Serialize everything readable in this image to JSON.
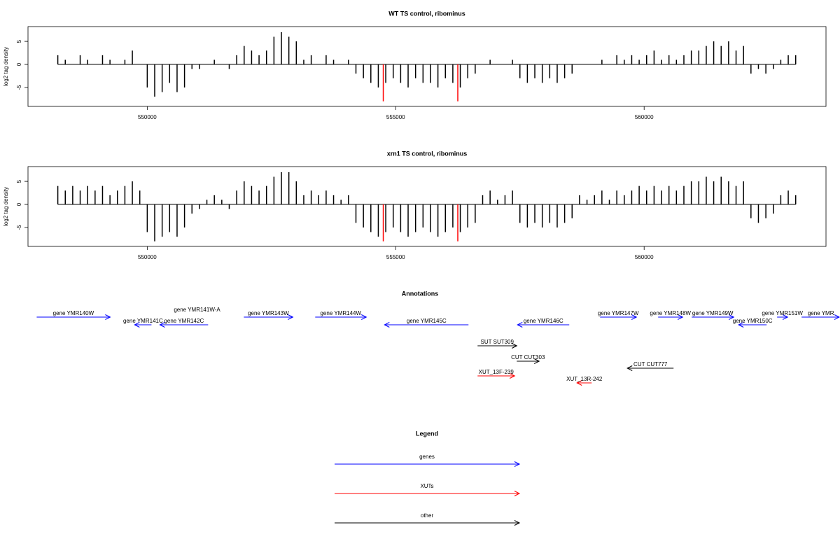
{
  "chart_data": [
    {
      "type": "bar",
      "title": "WT TS control, ribominus",
      "ylabel": "log2 tag density",
      "xlim": [
        547600,
        563660
      ],
      "ylim": [
        -9.1,
        8.2
      ],
      "xticks": [
        550000,
        555000,
        560000
      ],
      "yticks": [
        -5,
        0,
        5
      ],
      "series": [
        {
          "color": "#000000",
          "x": [
            548200,
            548350,
            548500,
            548650,
            548800,
            548950,
            549100,
            549250,
            549400,
            549550,
            549700,
            549850,
            550000,
            550150,
            550300,
            550450,
            550600,
            550750,
            550900,
            551050,
            551200,
            551350,
            551500,
            551650,
            551800,
            551950,
            552100,
            552250,
            552400,
            552550,
            552700,
            552850,
            553000,
            553150,
            553300,
            553450,
            553600,
            553750,
            553900,
            554050,
            554200,
            554350,
            554500,
            554650,
            554800,
            554950,
            555100,
            555250,
            555400,
            555550,
            555700,
            555850,
            556000,
            556150,
            556300,
            556450,
            556600,
            556750,
            556900,
            557050,
            557200,
            557350,
            557500,
            557650,
            557800,
            557950,
            558100,
            558250,
            558400,
            558550,
            558700,
            558850,
            559000,
            559150,
            559300,
            559450,
            559600,
            559750,
            559900,
            560050,
            560200,
            560350,
            560500,
            560650,
            560800,
            560950,
            561100,
            561250,
            561400,
            561550,
            561700,
            561850,
            562000,
            562150,
            562300,
            562450,
            562600,
            562750,
            562900,
            563050
          ],
          "values": [
            2,
            1,
            0,
            2,
            1,
            0,
            2,
            1,
            0,
            1,
            3,
            0,
            -5,
            -7,
            -6,
            -4,
            -6,
            -5,
            -1,
            -1,
            0,
            1,
            0,
            -1,
            2,
            4,
            3,
            2,
            3,
            6,
            7,
            6,
            5,
            1,
            2,
            0,
            2,
            1,
            0,
            1,
            -2,
            -3,
            -4,
            -5,
            -4,
            -3,
            -4,
            -5,
            -3,
            -4,
            -4,
            -5,
            -3,
            -4,
            -5,
            -3,
            -2,
            0,
            1,
            0,
            0,
            1,
            -3,
            -4,
            -3,
            -4,
            -3,
            -4,
            -3,
            -2,
            0,
            0,
            0,
            1,
            0,
            2,
            1,
            2,
            1,
            2,
            3,
            1,
            2,
            1,
            2,
            3,
            3,
            4,
            5,
            4,
            5,
            3,
            4,
            -2,
            -1,
            -2,
            -1,
            1,
            2,
            2
          ]
        },
        {
          "color": "#ff0000",
          "x": [
            554750,
            556250
          ],
          "values": [
            -8,
            -8
          ]
        }
      ]
    },
    {
      "type": "bar",
      "title": "xrn1 TS control, ribominus",
      "ylabel": "log2 tag density",
      "xlim": [
        547600,
        563660
      ],
      "ylim": [
        -9.1,
        8.2
      ],
      "xticks": [
        550000,
        555000,
        560000
      ],
      "yticks": [
        -5,
        0,
        5
      ],
      "series": [
        {
          "color": "#000000",
          "x": [
            548200,
            548350,
            548500,
            548650,
            548800,
            548950,
            549100,
            549250,
            549400,
            549550,
            549700,
            549850,
            550000,
            550150,
            550300,
            550450,
            550600,
            550750,
            550900,
            551050,
            551200,
            551350,
            551500,
            551650,
            551800,
            551950,
            552100,
            552250,
            552400,
            552550,
            552700,
            552850,
            553000,
            553150,
            553300,
            553450,
            553600,
            553750,
            553900,
            554050,
            554200,
            554350,
            554500,
            554650,
            554800,
            554950,
            555100,
            555250,
            555400,
            555550,
            555700,
            555850,
            556000,
            556150,
            556300,
            556450,
            556600,
            556750,
            556900,
            557050,
            557200,
            557350,
            557500,
            557650,
            557800,
            557950,
            558100,
            558250,
            558400,
            558550,
            558700,
            558850,
            559000,
            559150,
            559300,
            559450,
            559600,
            559750,
            559900,
            560050,
            560200,
            560350,
            560500,
            560650,
            560800,
            560950,
            561100,
            561250,
            561400,
            561550,
            561700,
            561850,
            562000,
            562150,
            562300,
            562450,
            562600,
            562750,
            562900,
            563050
          ],
          "values": [
            4,
            3,
            4,
            3,
            4,
            3,
            4,
            2,
            3,
            4,
            5,
            3,
            -6,
            -8,
            -7,
            -6,
            -7,
            -5,
            -2,
            -1,
            1,
            2,
            1,
            -1,
            3,
            5,
            4,
            3,
            4,
            6,
            7,
            7,
            5,
            2,
            3,
            2,
            3,
            2,
            1,
            2,
            -4,
            -5,
            -6,
            -7,
            -6,
            -5,
            -6,
            -7,
            -6,
            -5,
            -6,
            -7,
            -6,
            -5,
            -6,
            -5,
            -4,
            2,
            3,
            1,
            2,
            3,
            -4,
            -5,
            -4,
            -5,
            -4,
            -5,
            -4,
            -3,
            2,
            1,
            2,
            3,
            1,
            3,
            2,
            3,
            4,
            3,
            4,
            3,
            4,
            3,
            4,
            5,
            5,
            6,
            5,
            6,
            5,
            4,
            5,
            -3,
            -4,
            -3,
            -2,
            2,
            3,
            2
          ]
        },
        {
          "color": "#ff0000",
          "x": [
            554750,
            556250
          ],
          "values": [
            -8,
            -8
          ]
        }
      ]
    }
  ],
  "annotations": {
    "title": "Annotations",
    "features": [
      {
        "label": "gene YMR140W",
        "start": 547775,
        "end": 549254,
        "strand": "+",
        "color": "#0000ff"
      },
      {
        "label": "gene YMR141C",
        "start": 549746,
        "end": 550085,
        "strand": "-",
        "color": "#0000ff"
      },
      {
        "label": "gene YMR141W-A",
        "start": 550780,
        "end": 551225,
        "strand": "+",
        "color": "#0000ff"
      },
      {
        "label": "gene YMR142C",
        "start": 550254,
        "end": 551225,
        "strand": "-",
        "color": "#0000ff"
      },
      {
        "label": "gene YMR143W",
        "start": 551944,
        "end": 552930,
        "strand": "+",
        "color": "#0000ff"
      },
      {
        "label": "gene YMR144W",
        "start": 553380,
        "end": 554408,
        "strand": "+",
        "color": "#0000ff"
      },
      {
        "label": "gene YMR145C",
        "start": 554775,
        "end": 556465,
        "strand": "-",
        "color": "#0000ff"
      },
      {
        "label": "gene YMR146C",
        "start": 557451,
        "end": 558493,
        "strand": "-",
        "color": "#0000ff"
      },
      {
        "label": "gene YMR147W",
        "start": 559113,
        "end": 559845,
        "strand": "+",
        "color": "#0000ff"
      },
      {
        "label": "gene YMR148W",
        "start": 560282,
        "end": 560775,
        "strand": "+",
        "color": "#0000ff"
      },
      {
        "label": "gene YMR149W",
        "start": 560958,
        "end": 561803,
        "strand": "+",
        "color": "#0000ff"
      },
      {
        "label": "gene YMR150C",
        "start": 561901,
        "end": 562465,
        "strand": "-",
        "color": "#0000ff"
      },
      {
        "label": "gene YMR151W",
        "start": 562676,
        "end": 562887,
        "strand": "+",
        "color": "#0000ff"
      },
      {
        "label": "gene YMR",
        "start": 563169,
        "end": 563944,
        "strand": "+",
        "color": "#0000ff"
      },
      {
        "label": "SUT SUT309",
        "start": 556648,
        "end": 557437,
        "strand": "+",
        "color": "#000000"
      },
      {
        "label": "CUT CUT303",
        "start": 557437,
        "end": 557887,
        "strand": "+",
        "color": "#000000"
      },
      {
        "label": "CUT CUT777",
        "start": 559662,
        "end": 560592,
        "strand": "-",
        "color": "#000000"
      },
      {
        "label": "XUT_13F-239",
        "start": 556648,
        "end": 557394,
        "strand": "+",
        "color": "#ff0000"
      },
      {
        "label": "XUT_13R-242",
        "start": 558648,
        "end": 558944,
        "strand": "-",
        "color": "#ff0000"
      }
    ]
  },
  "legend": {
    "title": "Legend",
    "items": [
      {
        "label": "genes",
        "color": "#0000ff"
      },
      {
        "label": "XUTs",
        "color": "#ff0000"
      },
      {
        "label": "other",
        "color": "#000000"
      }
    ]
  }
}
